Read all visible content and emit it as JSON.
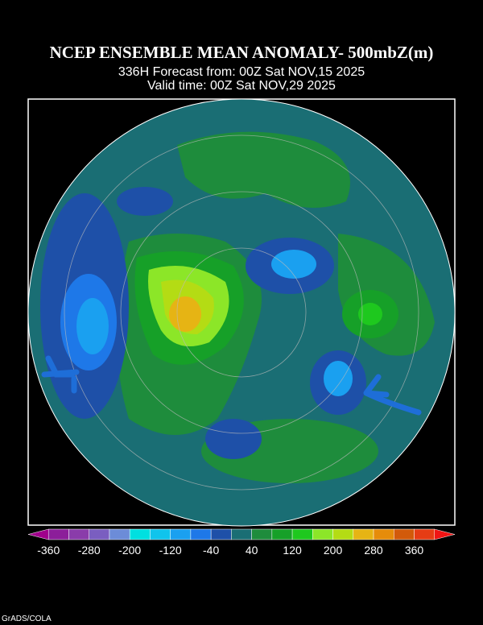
{
  "header": {
    "title": "NCEP ENSEMBLE MEAN ANOMALY- 500mbZ(m)",
    "forecast": "336H Forecast from: 00Z Sat NOV,15 2025",
    "valid": "Valid time: 00Z Sat NOV,29 2025"
  },
  "colorbar": {
    "ticks": [
      -360,
      -280,
      -200,
      -120,
      -40,
      40,
      120,
      200,
      280,
      360
    ],
    "colors": [
      "#a0008c",
      "#8c1e9a",
      "#8a3caa",
      "#7a5ec0",
      "#6c8cd8",
      "#00e0e0",
      "#10c4ec",
      "#1aa0f0",
      "#1e78e8",
      "#1e50a8",
      "#1a6e74",
      "#1e8c3c",
      "#16a028",
      "#1ec81e",
      "#8ce628",
      "#b4dc14",
      "#e6b414",
      "#e68c0a",
      "#d25a0a",
      "#e63c14",
      "#f01414"
    ]
  },
  "footer": {
    "credit": "GrADS/COLA"
  }
}
